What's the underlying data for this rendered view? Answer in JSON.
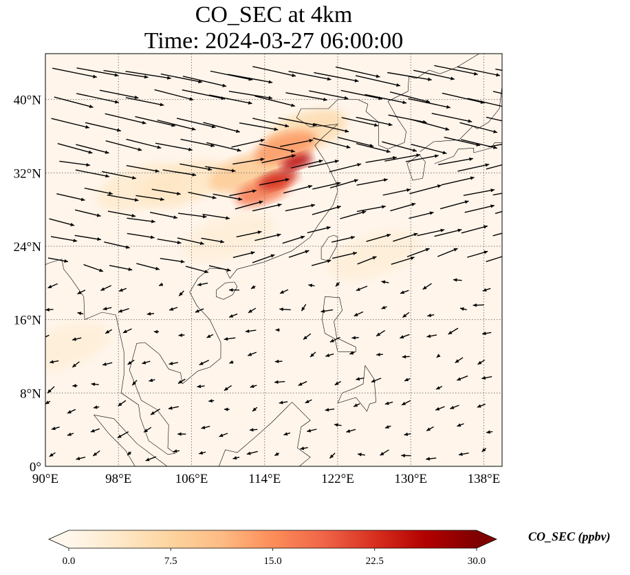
{
  "title": {
    "line1": "CO_SEC at 4km",
    "line2": "Time: 2024-03-27 06:00:00"
  },
  "map": {
    "lon_range": [
      90,
      140
    ],
    "lat_range": [
      0,
      45
    ],
    "lon_ticks": [
      90,
      98,
      106,
      114,
      122,
      130,
      138
    ],
    "lon_tick_labels": [
      "90°E",
      "98°E",
      "106°E",
      "114°E",
      "122°E",
      "130°E",
      "138°E"
    ],
    "lat_ticks": [
      0,
      8,
      16,
      24,
      32,
      40
    ],
    "lat_tick_labels": [
      "0°",
      "8°N",
      "16°N",
      "24°N",
      "32°N",
      "40°N"
    ],
    "gridlines": "dotted",
    "background_color": "#fff5eb",
    "concentration_max": 30,
    "plumes": [
      {
        "lon": 117.5,
        "lat": 33.2,
        "value": 26
      },
      {
        "lon": 115.5,
        "lat": 31.3,
        "value": 23
      },
      {
        "lon": 113.8,
        "lat": 30.0,
        "value": 17
      },
      {
        "lon": 116.3,
        "lat": 34.8,
        "value": 14
      },
      {
        "lon": 112.0,
        "lat": 32.0,
        "value": 9
      },
      {
        "lon": 118.5,
        "lat": 36.5,
        "value": 6
      },
      {
        "lon": 105.0,
        "lat": 30.8,
        "value": 4
      },
      {
        "lon": 100.5,
        "lat": 30.5,
        "value": 3
      },
      {
        "lon": 126.0,
        "lat": 23.0,
        "value": 2
      },
      {
        "lon": 110.0,
        "lat": 25.0,
        "value": 2
      },
      {
        "lon": 92.0,
        "lat": 13.0,
        "value": 2
      }
    ],
    "wind_vectors_description": "Westerly flow north of 20°N, weak northeasterly flow south of 20°N"
  },
  "colorbar": {
    "label": "CO_SEC (ppbv)",
    "min": 0.0,
    "max": 30.0,
    "tick_values": [
      0.0,
      7.5,
      15.0,
      22.5,
      30.0
    ],
    "tick_labels": [
      "0.0",
      "7.5",
      "15.0",
      "22.5",
      "30.0"
    ],
    "colormap": "OrRd",
    "colors": [
      "#fff7ec",
      "#fee8c8",
      "#fdd49e",
      "#fdbb84",
      "#fc8d59",
      "#ef6548",
      "#d7301f",
      "#b30000",
      "#7f0000"
    ],
    "extend": "both"
  }
}
